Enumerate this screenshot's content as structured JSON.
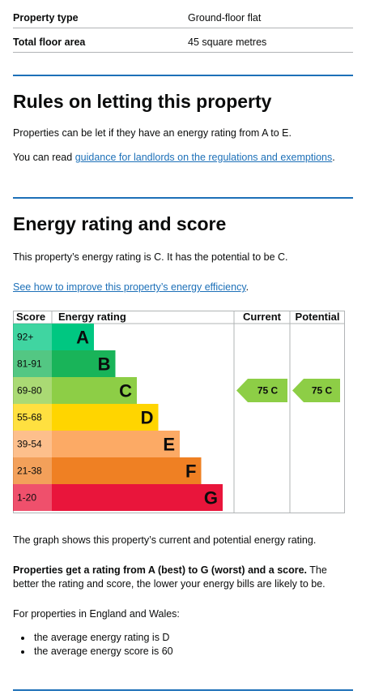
{
  "summary": [
    {
      "key": "Property type",
      "value": "Ground-floor flat"
    },
    {
      "key": "Total floor area",
      "value": "45 square metres"
    }
  ],
  "letting": {
    "heading": "Rules on letting this property",
    "para1": "Properties can be let if they have an energy rating from A to E.",
    "para2_prefix": "You can read ",
    "para2_link": "guidance for landlords on the regulations and exemptions",
    "para2_suffix": "."
  },
  "energy": {
    "heading": "Energy rating and score",
    "intro": "This property’s energy rating is C. It has the potential to be C.",
    "improve_link": "See how to improve this property’s energy efficiency",
    "improve_suffix": ".",
    "graph_caption": "The graph shows this property’s current and potential energy rating.",
    "explain_bold": "Properties get a rating from A (best) to G (worst) and a score.",
    "explain_rest": " The better the rating and score, the lower your energy bills are likely to be.",
    "average_intro": "For properties in England and Wales:",
    "average_items": [
      "the average energy rating is D",
      "the average energy score is 60"
    ]
  },
  "chart_data": {
    "type": "table",
    "headers": {
      "score": "Score",
      "rating": "Energy rating",
      "current": "Current",
      "potential": "Potential"
    },
    "bands": [
      {
        "score": "92+",
        "letter": "A",
        "color": "#00c781"
      },
      {
        "score": "81-91",
        "letter": "B",
        "color": "#19b459"
      },
      {
        "score": "69-80",
        "letter": "C",
        "color": "#8dce46"
      },
      {
        "score": "55-68",
        "letter": "D",
        "color": "#ffd500"
      },
      {
        "score": "39-54",
        "letter": "E",
        "color": "#fcaa65"
      },
      {
        "score": "21-38",
        "letter": "F",
        "color": "#ef8023"
      },
      {
        "score": "1-20",
        "letter": "G",
        "color": "#e9153b"
      }
    ],
    "current": {
      "score": 75,
      "letter": "C",
      "label": "75 C",
      "color": "#8dce46"
    },
    "potential": {
      "score": 75,
      "letter": "C",
      "label": "75 C",
      "color": "#8dce46"
    }
  }
}
